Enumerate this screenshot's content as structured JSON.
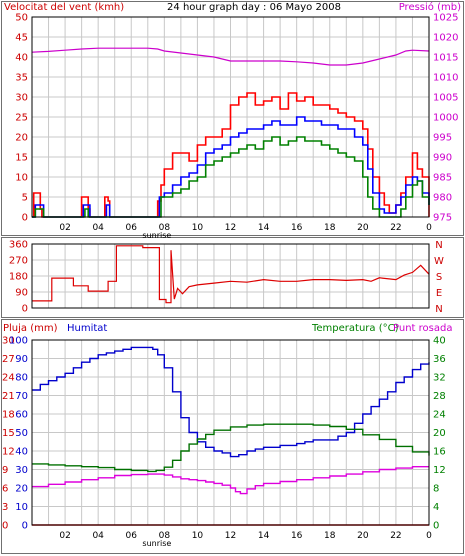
{
  "header": {
    "title": "24 hour graph day : 06 Mayo 2008"
  },
  "colors": {
    "frame": "#000000",
    "grid": "#c8c8c8",
    "panel_border": "#707070",
    "wind_avg": "#008000",
    "wind_gust": "#ff0000",
    "wind_max": "#0000ff",
    "pressure": "#cc00cc",
    "direction": "#dd0000",
    "humidity": "#0000cc",
    "temperature": "#007000",
    "dewpoint": "#dd00dd",
    "rain": "#dd0000",
    "sunrise": "#0000ff",
    "label_red": "#cc0000",
    "label_magenta": "#cc00cc",
    "label_blue": "#0000cc",
    "label_green": "#008000"
  },
  "chart_data": [
    {
      "type": "line",
      "title": "24 hour graph day : 06 Mayo 2008",
      "ylabel_left": "Velocitat del vent (kmh)",
      "ylabel_right": "Pressió (mb)",
      "xticks": [
        "02",
        "04",
        "06",
        "08",
        "10",
        "12",
        "14",
        "16",
        "18",
        "20",
        "22",
        "0"
      ],
      "sunrise_label": "sunrise",
      "sunrise_hour": 7.55,
      "ylim_left": [
        0,
        50
      ],
      "ylim_right": [
        975,
        1025
      ],
      "yticks_left": [
        "0",
        "5",
        "10",
        "15",
        "20",
        "25",
        "30",
        "35",
        "40",
        "45",
        "50"
      ],
      "yticks_right": [
        "975",
        "980",
        "985",
        "990",
        "995",
        "1000",
        "1005",
        "1010",
        "1015",
        "1020",
        "1025"
      ],
      "series": [
        {
          "key": "pressure",
          "axis": "right",
          "x": [
            0,
            1,
            2,
            3,
            4,
            5,
            6,
            7,
            7.6,
            8,
            9,
            10,
            11,
            12,
            13,
            14,
            15,
            16,
            17,
            18,
            19,
            20,
            21,
            22,
            22.6,
            23,
            24
          ],
          "values": [
            1016.2,
            1016.4,
            1016.7,
            1017,
            1017.2,
            1017.2,
            1017.2,
            1017.2,
            1017,
            1016.5,
            1016,
            1015.5,
            1015,
            1014,
            1014,
            1014,
            1014,
            1013.8,
            1013.5,
            1013,
            1013,
            1013.5,
            1014.5,
            1015.5,
            1016.5,
            1016.7,
            1016.5
          ]
        },
        {
          "key": "wind_gust",
          "axis": "left",
          "x": [
            0,
            0.1,
            0.3,
            0.5,
            0.6,
            2,
            2.9,
            3.0,
            3.2,
            3.4,
            3.5,
            4.3,
            4.4,
            4.6,
            4.7,
            7.5,
            7.6,
            7.8,
            8,
            8.5,
            9,
            9.5,
            10,
            10.5,
            11,
            11.5,
            12,
            12.5,
            13,
            13.5,
            14,
            14.5,
            15,
            15.5,
            16,
            16.5,
            17,
            17.5,
            18,
            18.5,
            19,
            19.5,
            20,
            20.3,
            20.6,
            21,
            21.3,
            21.6,
            22,
            22.3,
            22.6,
            23,
            23.3,
            23.6,
            24
          ],
          "values": [
            0,
            6,
            6,
            2,
            0,
            0,
            0,
            5,
            5,
            2,
            0,
            0,
            5,
            4,
            0,
            0,
            4,
            8,
            12,
            16,
            16,
            14,
            18,
            20,
            20,
            22,
            28,
            30,
            31,
            28,
            29,
            30,
            27,
            31,
            29,
            30,
            28,
            28,
            27,
            26,
            25,
            24,
            22,
            17,
            10,
            6,
            3,
            1,
            3,
            6,
            10,
            16,
            12,
            10,
            0
          ]
        },
        {
          "key": "wind_max",
          "axis": "left",
          "x": [
            0,
            0.2,
            0.5,
            0.7,
            2,
            2.9,
            3.1,
            3.3,
            3.5,
            4.3,
            4.5,
            4.7,
            7.5,
            7.7,
            8,
            8.5,
            9,
            9.5,
            10,
            10.5,
            11,
            11.5,
            12,
            12.5,
            13,
            13.5,
            14,
            14.5,
            15,
            15.5,
            16,
            16.5,
            17,
            17.5,
            18,
            18.5,
            19,
            19.5,
            20,
            20.3,
            20.6,
            21,
            21.3,
            21.6,
            22,
            22.3,
            22.6,
            23,
            23.3,
            23.6,
            24
          ],
          "values": [
            0,
            3,
            3,
            0,
            0,
            0,
            3,
            3,
            0,
            0,
            3,
            0,
            0,
            5,
            6,
            8,
            10,
            11,
            13,
            16,
            17,
            18,
            20,
            21,
            22,
            22,
            23,
            24,
            23,
            23,
            25,
            24,
            24,
            23,
            23,
            22,
            22,
            20,
            18,
            12,
            6,
            2,
            1,
            1,
            3,
            5,
            8,
            10,
            9,
            6,
            3
          ]
        },
        {
          "key": "wind_avg",
          "axis": "left",
          "x": [
            0,
            0.2,
            0.5,
            0.7,
            3,
            3.2,
            3.4,
            7.5,
            7.8,
            8,
            8.5,
            9,
            9.5,
            10,
            10.5,
            11,
            11.5,
            12,
            12.5,
            13,
            13.5,
            14,
            14.5,
            15,
            15.5,
            16,
            16.5,
            17,
            17.5,
            18,
            18.5,
            19,
            19.5,
            20,
            20.3,
            20.6,
            21,
            22,
            22.3,
            22.6,
            23,
            23.3,
            23.6,
            24
          ],
          "values": [
            0,
            2,
            2,
            0,
            0,
            2,
            0,
            0,
            5,
            5,
            6,
            7,
            9,
            10,
            13,
            14,
            15,
            16,
            17,
            18,
            17,
            19,
            20,
            18,
            19,
            20,
            19,
            19,
            18,
            17,
            16,
            15,
            14,
            10,
            5,
            2,
            0,
            0,
            2,
            5,
            8,
            9,
            5,
            3
          ]
        }
      ]
    },
    {
      "type": "line",
      "ylabel_right": "N W S E N",
      "cardinals": [
        "N",
        "W",
        "S",
        "E",
        "N"
      ],
      "xticks": [
        "02",
        "04",
        "06",
        "08",
        "10",
        "12",
        "14",
        "16",
        "18",
        "20",
        "22",
        "0"
      ],
      "sunrise_label": "sunrise",
      "ylim": [
        0,
        360
      ],
      "yticks": [
        "0",
        "90",
        "180",
        "270",
        "360"
      ],
      "series": [
        {
          "key": "direction",
          "x": [
            0,
            1.2,
            1.2,
            2.5,
            2.5,
            3.4,
            3.4,
            4.6,
            4.6,
            5.1,
            5.1,
            6.7,
            6.7,
            7.7,
            7.7,
            8.1,
            8.1,
            8.4,
            8.4,
            8.6,
            8.8,
            9.1,
            9.5,
            10,
            11,
            12,
            13,
            14,
            15,
            16,
            17,
            18,
            19,
            20,
            20.5,
            21,
            22,
            22.5,
            23,
            23.5,
            24
          ],
          "values": [
            40,
            40,
            168,
            168,
            125,
            125,
            95,
            95,
            150,
            150,
            350,
            350,
            340,
            340,
            48,
            48,
            30,
            30,
            325,
            50,
            110,
            80,
            120,
            130,
            140,
            150,
            145,
            160,
            150,
            150,
            160,
            160,
            155,
            160,
            150,
            170,
            160,
            185,
            200,
            240,
            190
          ]
        }
      ]
    },
    {
      "type": "line",
      "ylabel_left_a": "Pluja (mm)",
      "ylabel_left_b": "Humitat",
      "ylabel_right_a": "Temperatura (°C)",
      "ylabel_right_b": "Punt rosada",
      "xticks": [
        "02",
        "04",
        "06",
        "08",
        "10",
        "12",
        "14",
        "16",
        "18",
        "20",
        "22",
        "0"
      ],
      "sunrise_label": "sunrise",
      "ylim_hum": [
        0,
        100
      ],
      "ylim_rain": [
        0,
        30
      ],
      "ylim_temp": [
        0,
        40
      ],
      "yticks_humidity": [
        "0",
        "10",
        "20",
        "30",
        "40",
        "50",
        "60",
        "70",
        "80",
        "90",
        "100"
      ],
      "yticks_rain": [
        "0",
        "3",
        "6",
        "9",
        "12",
        "15",
        "18",
        "21",
        "24",
        "27",
        "30"
      ],
      "yticks_temp": [
        "0",
        "4",
        "8",
        "12",
        "16",
        "20",
        "24",
        "28",
        "32",
        "36",
        "40"
      ],
      "series": [
        {
          "key": "humidity",
          "axis": "hum",
          "x": [
            0,
            0.5,
            1,
            1.5,
            2,
            2.5,
            3,
            3.5,
            4,
            4.5,
            5,
            5.5,
            6,
            6.5,
            7,
            7.3,
            7.6,
            8,
            8.5,
            9,
            9.5,
            10,
            10.5,
            11,
            11.5,
            12,
            12.5,
            13,
            13.5,
            14,
            14.5,
            15,
            15.5,
            16,
            16.5,
            17,
            17.5,
            18,
            18.5,
            19,
            19.5,
            20,
            20.5,
            21,
            21.5,
            22,
            22.5,
            23,
            23.5,
            24
          ],
          "values": [
            73,
            76,
            78,
            80,
            82,
            85,
            88,
            90,
            92,
            93,
            94,
            95,
            96,
            96,
            96,
            95,
            92,
            85,
            72,
            58,
            50,
            45,
            42,
            40,
            39,
            37,
            38,
            40,
            41,
            42,
            42,
            43,
            43,
            44,
            45,
            46,
            46,
            46,
            48,
            50,
            55,
            60,
            64,
            68,
            72,
            77,
            80,
            84,
            87,
            88
          ]
        },
        {
          "key": "temperature",
          "axis": "temp",
          "x": [
            0,
            1,
            2,
            3,
            4,
            5,
            6,
            7,
            7.5,
            8,
            8.5,
            9,
            9.5,
            10,
            10.5,
            11,
            12,
            13,
            14,
            15,
            16,
            17,
            18,
            19,
            20,
            21,
            22,
            23,
            24
          ],
          "values": [
            13.2,
            13,
            12.8,
            12.6,
            12.4,
            12,
            11.8,
            11.6,
            11.8,
            12.5,
            14,
            16,
            17.5,
            18.6,
            19.6,
            20.5,
            21.2,
            21.6,
            21.8,
            21.8,
            21.8,
            21.6,
            21.3,
            20.7,
            19.5,
            18.5,
            17,
            15.8,
            15
          ]
        },
        {
          "key": "dewpoint",
          "axis": "temp",
          "x": [
            0,
            1,
            2,
            3,
            4,
            5,
            6,
            7,
            7.5,
            8,
            8.5,
            9,
            9.5,
            10,
            10.5,
            11,
            11.5,
            12,
            12.3,
            12.6,
            13,
            13.5,
            14,
            15,
            16,
            17,
            18,
            19,
            20,
            21,
            22,
            23,
            24
          ],
          "values": [
            8.3,
            8.8,
            9.3,
            9.8,
            10.2,
            10.7,
            10.9,
            11,
            11,
            10.8,
            10.4,
            10,
            9.8,
            9.6,
            9.3,
            9,
            8.6,
            8,
            7.2,
            6.8,
            7.8,
            8.5,
            9,
            9.4,
            9.8,
            10.2,
            10.6,
            11,
            11.5,
            12,
            12.3,
            12.6,
            12.6
          ]
        },
        {
          "key": "rain",
          "axis": "rain",
          "x": [
            0,
            24
          ],
          "values": [
            0,
            0
          ]
        }
      ]
    }
  ]
}
